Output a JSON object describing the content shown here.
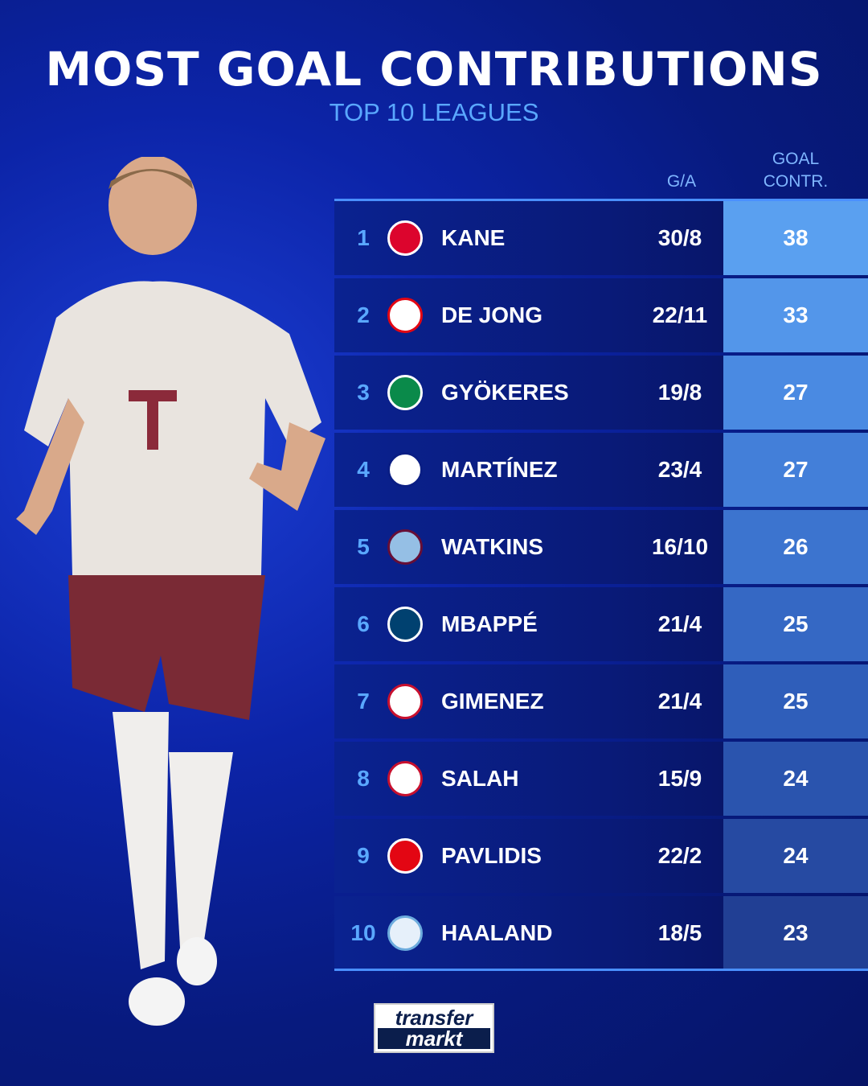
{
  "title": "MOST GOAL CONTRIBUTIONS",
  "subtitle": "TOP 10 LEAGUES",
  "columns": {
    "ga": "G/A",
    "goal_contr_line1": "GOAL",
    "goal_contr_line2": "CONTR."
  },
  "colors": {
    "accent": "#4a90ff",
    "rank": "#5aa8ff",
    "row_bg": "#0a1e84"
  },
  "rows": [
    {
      "rank": "1",
      "club_crest": "bayern-munich-crest",
      "name": "KANE",
      "ga": "30/8",
      "contr": "38",
      "shade": "#5aa0f0"
    },
    {
      "rank": "2",
      "club_crest": "psv-crest",
      "name": "DE JONG",
      "ga": "22/11",
      "contr": "33",
      "shade": "#5396ea"
    },
    {
      "rank": "3",
      "club_crest": "sporting-cp-crest",
      "name": "GYÖKERES",
      "ga": "19/8",
      "contr": "27",
      "shade": "#4a8ae2"
    },
    {
      "rank": "4",
      "club_crest": "inter-crest",
      "name": "MARTÍNEZ",
      "ga": "23/4",
      "contr": "27",
      "shade": "#437fd9"
    },
    {
      "rank": "5",
      "club_crest": "aston-villa-crest",
      "name": "WATKINS",
      "ga": "16/10",
      "contr": "26",
      "shade": "#3c74cf"
    },
    {
      "rank": "6",
      "club_crest": "psg-crest",
      "name": "MBAPPÉ",
      "ga": "21/4",
      "contr": "25",
      "shade": "#3568c4"
    },
    {
      "rank": "7",
      "club_crest": "feyenoord-crest",
      "name": "GIMENEZ",
      "ga": "21/4",
      "contr": "25",
      "shade": "#2f5eba"
    },
    {
      "rank": "8",
      "club_crest": "liverpool-crest",
      "name": "SALAH",
      "ga": "15/9",
      "contr": "24",
      "shade": "#2a54ae"
    },
    {
      "rank": "9",
      "club_crest": "az-alkmaar-crest",
      "name": "PAVLIDIS",
      "ga": "22/2",
      "contr": "24",
      "shade": "#264aa2"
    },
    {
      "rank": "10",
      "club_crest": "manchester-city-crest",
      "name": "HAALAND",
      "ga": "18/5",
      "contr": "23",
      "shade": "#213f94"
    }
  ],
  "logo": {
    "line1": "transfer",
    "line2": "markt"
  }
}
